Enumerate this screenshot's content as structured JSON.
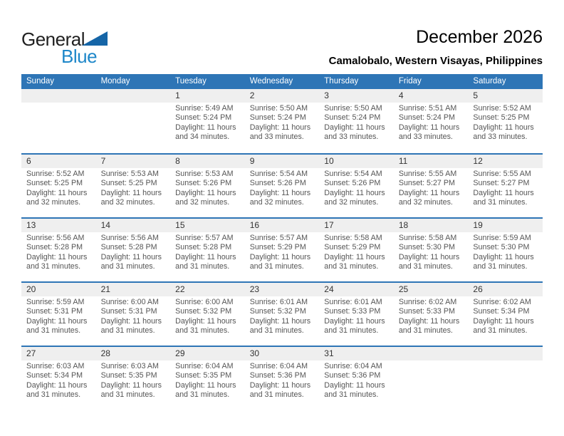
{
  "logo": {
    "general": "General",
    "blue": "Blue"
  },
  "header": {
    "title": "December 2026",
    "subtitle": "Camalobalo, Western Visayas, Philippines"
  },
  "colors": {
    "header_blue": "#2E75B6",
    "accent_blue": "#1E87C9",
    "strip_gray": "#EFEFEF"
  },
  "calendar": {
    "weekdays": [
      "Sunday",
      "Monday",
      "Tuesday",
      "Wednesday",
      "Thursday",
      "Friday",
      "Saturday"
    ],
    "weeks": [
      [
        null,
        null,
        {
          "day": "1",
          "sunrise": "Sunrise: 5:49 AM",
          "sunset": "Sunset: 5:24 PM",
          "daylight": "Daylight: 11 hours and 34 minutes."
        },
        {
          "day": "2",
          "sunrise": "Sunrise: 5:50 AM",
          "sunset": "Sunset: 5:24 PM",
          "daylight": "Daylight: 11 hours and 33 minutes."
        },
        {
          "day": "3",
          "sunrise": "Sunrise: 5:50 AM",
          "sunset": "Sunset: 5:24 PM",
          "daylight": "Daylight: 11 hours and 33 minutes."
        },
        {
          "day": "4",
          "sunrise": "Sunrise: 5:51 AM",
          "sunset": "Sunset: 5:24 PM",
          "daylight": "Daylight: 11 hours and 33 minutes."
        },
        {
          "day": "5",
          "sunrise": "Sunrise: 5:52 AM",
          "sunset": "Sunset: 5:25 PM",
          "daylight": "Daylight: 11 hours and 33 minutes."
        }
      ],
      [
        {
          "day": "6",
          "sunrise": "Sunrise: 5:52 AM",
          "sunset": "Sunset: 5:25 PM",
          "daylight": "Daylight: 11 hours and 32 minutes."
        },
        {
          "day": "7",
          "sunrise": "Sunrise: 5:53 AM",
          "sunset": "Sunset: 5:25 PM",
          "daylight": "Daylight: 11 hours and 32 minutes."
        },
        {
          "day": "8",
          "sunrise": "Sunrise: 5:53 AM",
          "sunset": "Sunset: 5:26 PM",
          "daylight": "Daylight: 11 hours and 32 minutes."
        },
        {
          "day": "9",
          "sunrise": "Sunrise: 5:54 AM",
          "sunset": "Sunset: 5:26 PM",
          "daylight": "Daylight: 11 hours and 32 minutes."
        },
        {
          "day": "10",
          "sunrise": "Sunrise: 5:54 AM",
          "sunset": "Sunset: 5:26 PM",
          "daylight": "Daylight: 11 hours and 32 minutes."
        },
        {
          "day": "11",
          "sunrise": "Sunrise: 5:55 AM",
          "sunset": "Sunset: 5:27 PM",
          "daylight": "Daylight: 11 hours and 32 minutes."
        },
        {
          "day": "12",
          "sunrise": "Sunrise: 5:55 AM",
          "sunset": "Sunset: 5:27 PM",
          "daylight": "Daylight: 11 hours and 31 minutes."
        }
      ],
      [
        {
          "day": "13",
          "sunrise": "Sunrise: 5:56 AM",
          "sunset": "Sunset: 5:28 PM",
          "daylight": "Daylight: 11 hours and 31 minutes."
        },
        {
          "day": "14",
          "sunrise": "Sunrise: 5:56 AM",
          "sunset": "Sunset: 5:28 PM",
          "daylight": "Daylight: 11 hours and 31 minutes."
        },
        {
          "day": "15",
          "sunrise": "Sunrise: 5:57 AM",
          "sunset": "Sunset: 5:28 PM",
          "daylight": "Daylight: 11 hours and 31 minutes."
        },
        {
          "day": "16",
          "sunrise": "Sunrise: 5:57 AM",
          "sunset": "Sunset: 5:29 PM",
          "daylight": "Daylight: 11 hours and 31 minutes."
        },
        {
          "day": "17",
          "sunrise": "Sunrise: 5:58 AM",
          "sunset": "Sunset: 5:29 PM",
          "daylight": "Daylight: 11 hours and 31 minutes."
        },
        {
          "day": "18",
          "sunrise": "Sunrise: 5:58 AM",
          "sunset": "Sunset: 5:30 PM",
          "daylight": "Daylight: 11 hours and 31 minutes."
        },
        {
          "day": "19",
          "sunrise": "Sunrise: 5:59 AM",
          "sunset": "Sunset: 5:30 PM",
          "daylight": "Daylight: 11 hours and 31 minutes."
        }
      ],
      [
        {
          "day": "20",
          "sunrise": "Sunrise: 5:59 AM",
          "sunset": "Sunset: 5:31 PM",
          "daylight": "Daylight: 11 hours and 31 minutes."
        },
        {
          "day": "21",
          "sunrise": "Sunrise: 6:00 AM",
          "sunset": "Sunset: 5:31 PM",
          "daylight": "Daylight: 11 hours and 31 minutes."
        },
        {
          "day": "22",
          "sunrise": "Sunrise: 6:00 AM",
          "sunset": "Sunset: 5:32 PM",
          "daylight": "Daylight: 11 hours and 31 minutes."
        },
        {
          "day": "23",
          "sunrise": "Sunrise: 6:01 AM",
          "sunset": "Sunset: 5:32 PM",
          "daylight": "Daylight: 11 hours and 31 minutes."
        },
        {
          "day": "24",
          "sunrise": "Sunrise: 6:01 AM",
          "sunset": "Sunset: 5:33 PM",
          "daylight": "Daylight: 11 hours and 31 minutes."
        },
        {
          "day": "25",
          "sunrise": "Sunrise: 6:02 AM",
          "sunset": "Sunset: 5:33 PM",
          "daylight": "Daylight: 11 hours and 31 minutes."
        },
        {
          "day": "26",
          "sunrise": "Sunrise: 6:02 AM",
          "sunset": "Sunset: 5:34 PM",
          "daylight": "Daylight: 11 hours and 31 minutes."
        }
      ],
      [
        {
          "day": "27",
          "sunrise": "Sunrise: 6:03 AM",
          "sunset": "Sunset: 5:34 PM",
          "daylight": "Daylight: 11 hours and 31 minutes."
        },
        {
          "day": "28",
          "sunrise": "Sunrise: 6:03 AM",
          "sunset": "Sunset: 5:35 PM",
          "daylight": "Daylight: 11 hours and 31 minutes."
        },
        {
          "day": "29",
          "sunrise": "Sunrise: 6:04 AM",
          "sunset": "Sunset: 5:35 PM",
          "daylight": "Daylight: 11 hours and 31 minutes."
        },
        {
          "day": "30",
          "sunrise": "Sunrise: 6:04 AM",
          "sunset": "Sunset: 5:36 PM",
          "daylight": "Daylight: 11 hours and 31 minutes."
        },
        {
          "day": "31",
          "sunrise": "Sunrise: 6:04 AM",
          "sunset": "Sunset: 5:36 PM",
          "daylight": "Daylight: 11 hours and 31 minutes."
        },
        null,
        null
      ]
    ]
  }
}
